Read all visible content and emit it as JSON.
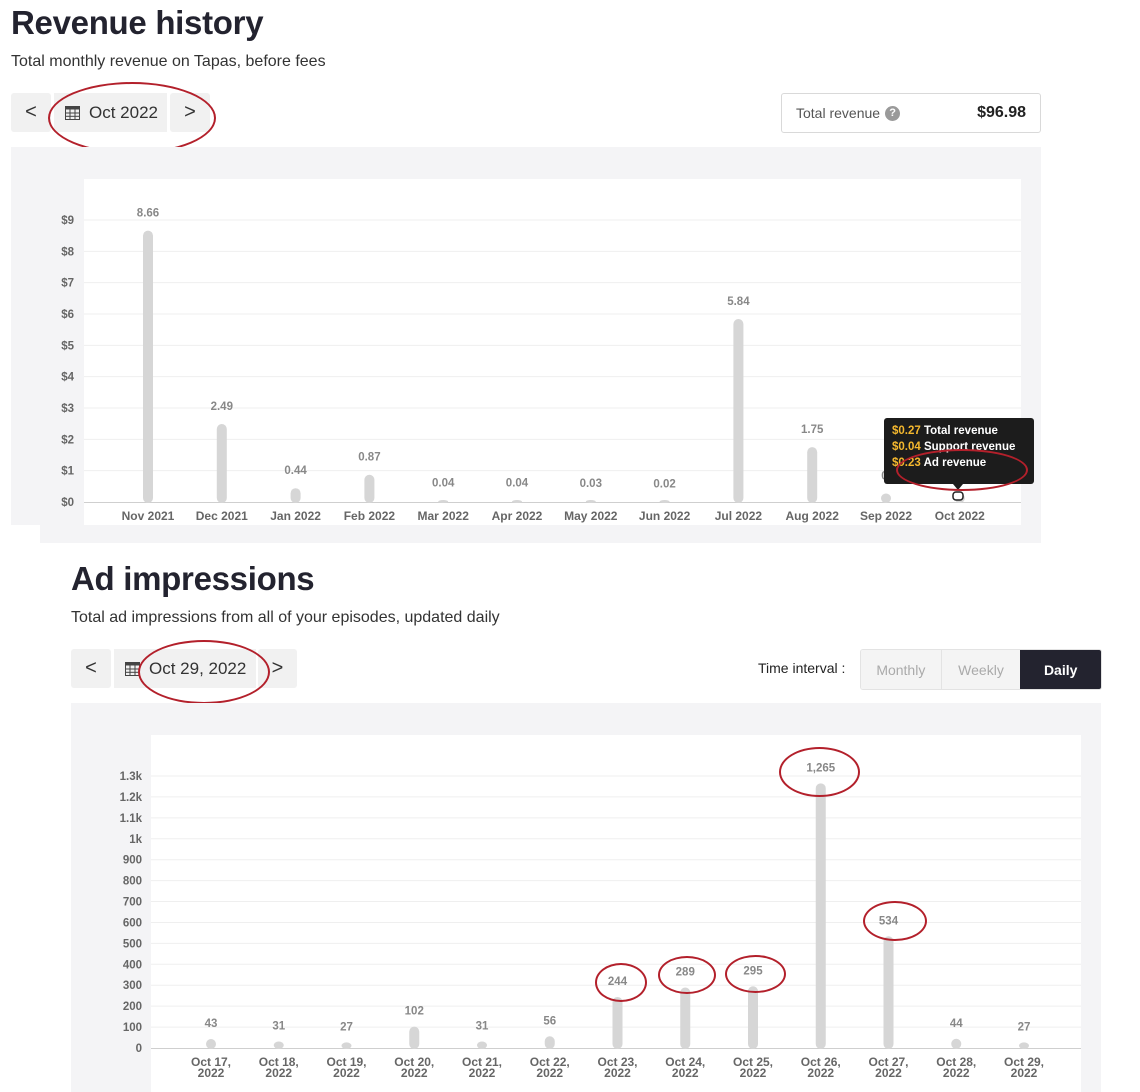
{
  "revenue": {
    "title": "Revenue history",
    "subtitle": "Total monthly revenue on Tapas, before fees",
    "prev": "<",
    "next": ">",
    "date": "Oct 2022",
    "total_label": "Total revenue",
    "total_help": "?",
    "total_value": "$96.98",
    "tooltip": [
      {
        "amount": "$0.27",
        "label": "Total revenue"
      },
      {
        "amount": "$0.04",
        "label": "Support revenue"
      },
      {
        "amount": "$0.23",
        "label": "Ad revenue"
      }
    ]
  },
  "impressions": {
    "title": "Ad impressions",
    "subtitle": "Total ad impressions from all of your episodes, updated daily",
    "prev": "<",
    "next": ">",
    "date": "Oct 29, 2022",
    "interval_label": "Time interval :",
    "intervals": [
      "Monthly",
      "Weekly",
      "Daily"
    ],
    "selected_interval": "Daily"
  },
  "chart_data": [
    {
      "type": "bar",
      "categories": [
        "Nov 2021",
        "Dec 2021",
        "Jan 2022",
        "Feb 2022",
        "Mar 2022",
        "Apr 2022",
        "May 2022",
        "Jun 2022",
        "Jul 2022",
        "Aug 2022",
        "Sep 2022",
        "Oct 2022"
      ],
      "values": [
        8.66,
        2.49,
        0.44,
        0.87,
        0.04,
        0.04,
        0.03,
        0.02,
        5.84,
        1.75,
        0.27,
        0.27
      ],
      "data_labels": [
        "8.66",
        "2.49",
        "0.44",
        "0.87",
        "0.04",
        "0.04",
        "0.03",
        "0.02",
        "5.84",
        "1.75",
        "0.",
        ""
      ],
      "yticks": [
        "$0",
        "$1",
        "$2",
        "$3",
        "$4",
        "$5",
        "$6",
        "$7",
        "$8",
        "$9"
      ],
      "ylim": [
        0,
        9
      ],
      "grid": true,
      "bar_color": "#d6d6d6"
    },
    {
      "type": "bar",
      "categories": [
        "Oct 17, 2022",
        "Oct 18, 2022",
        "Oct 19, 2022",
        "Oct 20, 2022",
        "Oct 21, 2022",
        "Oct 22, 2022",
        "Oct 23, 2022",
        "Oct 24, 2022",
        "Oct 25, 2022",
        "Oct 26, 2022",
        "Oct 27, 2022",
        "Oct 28, 2022",
        "Oct 29, 2022"
      ],
      "values": [
        43,
        31,
        27,
        102,
        31,
        56,
        244,
        289,
        295,
        1265,
        534,
        44,
        27
      ],
      "data_labels": [
        "43",
        "31",
        "27",
        "102",
        "31",
        "56",
        "244",
        "289",
        "295",
        "1,265",
        "534",
        "44",
        "27"
      ],
      "yticks": [
        "0",
        "100",
        "200",
        "300",
        "400",
        "500",
        "600",
        "700",
        "800",
        "900",
        "1k",
        "1.1k",
        "1.2k",
        "1.3k"
      ],
      "ylim": [
        0,
        1300
      ],
      "grid": true,
      "bar_color": "#d6d6d6"
    }
  ]
}
